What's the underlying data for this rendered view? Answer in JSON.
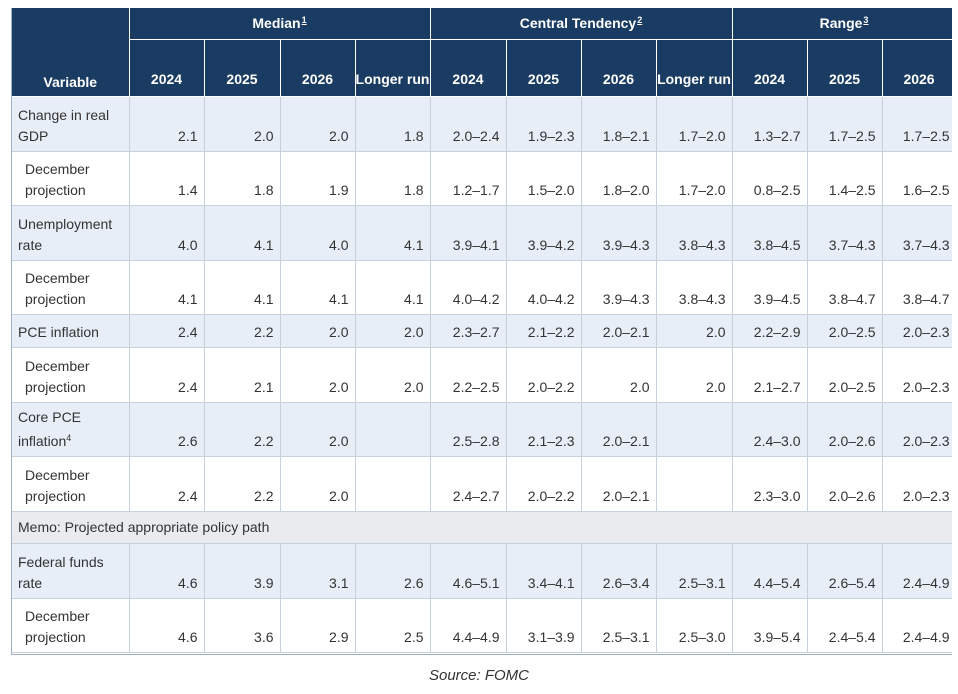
{
  "header": {
    "variable": "Variable",
    "groups": [
      {
        "label": "Median",
        "note": "1"
      },
      {
        "label": "Central Tendency",
        "note": "2"
      },
      {
        "label": "Range",
        "note": "3"
      }
    ],
    "years": [
      "2024",
      "2025",
      "2026",
      "Longer run"
    ]
  },
  "rows": [
    {
      "label": "Change in real GDP",
      "median": [
        "2.1",
        "2.0",
        "2.0",
        "1.8"
      ],
      "central": [
        "2.0–2.4",
        "1.9–2.3",
        "1.8–2.1",
        "1.7–2.0"
      ],
      "range": [
        "1.3–2.7",
        "1.7–2.5",
        "1.7–2.5"
      ]
    },
    {
      "label": "December projection",
      "median": [
        "1.4",
        "1.8",
        "1.9",
        "1.8"
      ],
      "central": [
        "1.2–1.7",
        "1.5–2.0",
        "1.8–2.0",
        "1.7–2.0"
      ],
      "range": [
        "0.8–2.5",
        "1.4–2.5",
        "1.6–2.5"
      ]
    },
    {
      "label": "Unemployment rate",
      "median": [
        "4.0",
        "4.1",
        "4.0",
        "4.1"
      ],
      "central": [
        "3.9–4.1",
        "3.9–4.2",
        "3.9–4.3",
        "3.8–4.3"
      ],
      "range": [
        "3.8–4.5",
        "3.7–4.3",
        "3.7–4.3"
      ]
    },
    {
      "label": "December projection",
      "median": [
        "4.1",
        "4.1",
        "4.1",
        "4.1"
      ],
      "central": [
        "4.0–4.2",
        "4.0–4.2",
        "3.9–4.3",
        "3.8–4.3"
      ],
      "range": [
        "3.9–4.5",
        "3.8–4.7",
        "3.8–4.7"
      ]
    },
    {
      "label": "PCE inflation",
      "median": [
        "2.4",
        "2.2",
        "2.0",
        "2.0"
      ],
      "central": [
        "2.3–2.7",
        "2.1–2.2",
        "2.0–2.1",
        "2.0"
      ],
      "range": [
        "2.2–2.9",
        "2.0–2.5",
        "2.0–2.3"
      ]
    },
    {
      "label": "December projection",
      "median": [
        "2.4",
        "2.1",
        "2.0",
        "2.0"
      ],
      "central": [
        "2.2–2.5",
        "2.0–2.2",
        "2.0",
        "2.0"
      ],
      "range": [
        "2.1–2.7",
        "2.0–2.5",
        "2.0–2.3"
      ]
    },
    {
      "label": "Core PCE inflation",
      "note": "4",
      "median": [
        "2.6",
        "2.2",
        "2.0",
        ""
      ],
      "central": [
        "2.5–2.8",
        "2.1–2.3",
        "2.0–2.1",
        ""
      ],
      "range": [
        "2.4–3.0",
        "2.0–2.6",
        "2.0–2.3"
      ]
    },
    {
      "label": "December projection",
      "median": [
        "2.4",
        "2.2",
        "2.0",
        ""
      ],
      "central": [
        "2.4–2.7",
        "2.0–2.2",
        "2.0–2.1",
        ""
      ],
      "range": [
        "2.3–3.0",
        "2.0–2.6",
        "2.0–2.3"
      ]
    },
    {
      "memo": "Memo: Projected appropriate policy path"
    },
    {
      "label": "Federal funds rate",
      "median": [
        "4.6",
        "3.9",
        "3.1",
        "2.6"
      ],
      "central": [
        "4.6–5.1",
        "3.4–4.1",
        "2.6–3.4",
        "2.5–3.1"
      ],
      "range": [
        "4.4–5.4",
        "2.6–5.4",
        "2.4–4.9"
      ]
    },
    {
      "label": "December projection",
      "median": [
        "4.6",
        "3.6",
        "2.9",
        "2.5"
      ],
      "central": [
        "4.4–4.9",
        "3.1–3.9",
        "2.5–3.1",
        "2.5–3.0"
      ],
      "range": [
        "3.9–5.4",
        "2.4–5.4",
        "2.4–4.9"
      ]
    }
  ],
  "source": "Source: FOMC"
}
